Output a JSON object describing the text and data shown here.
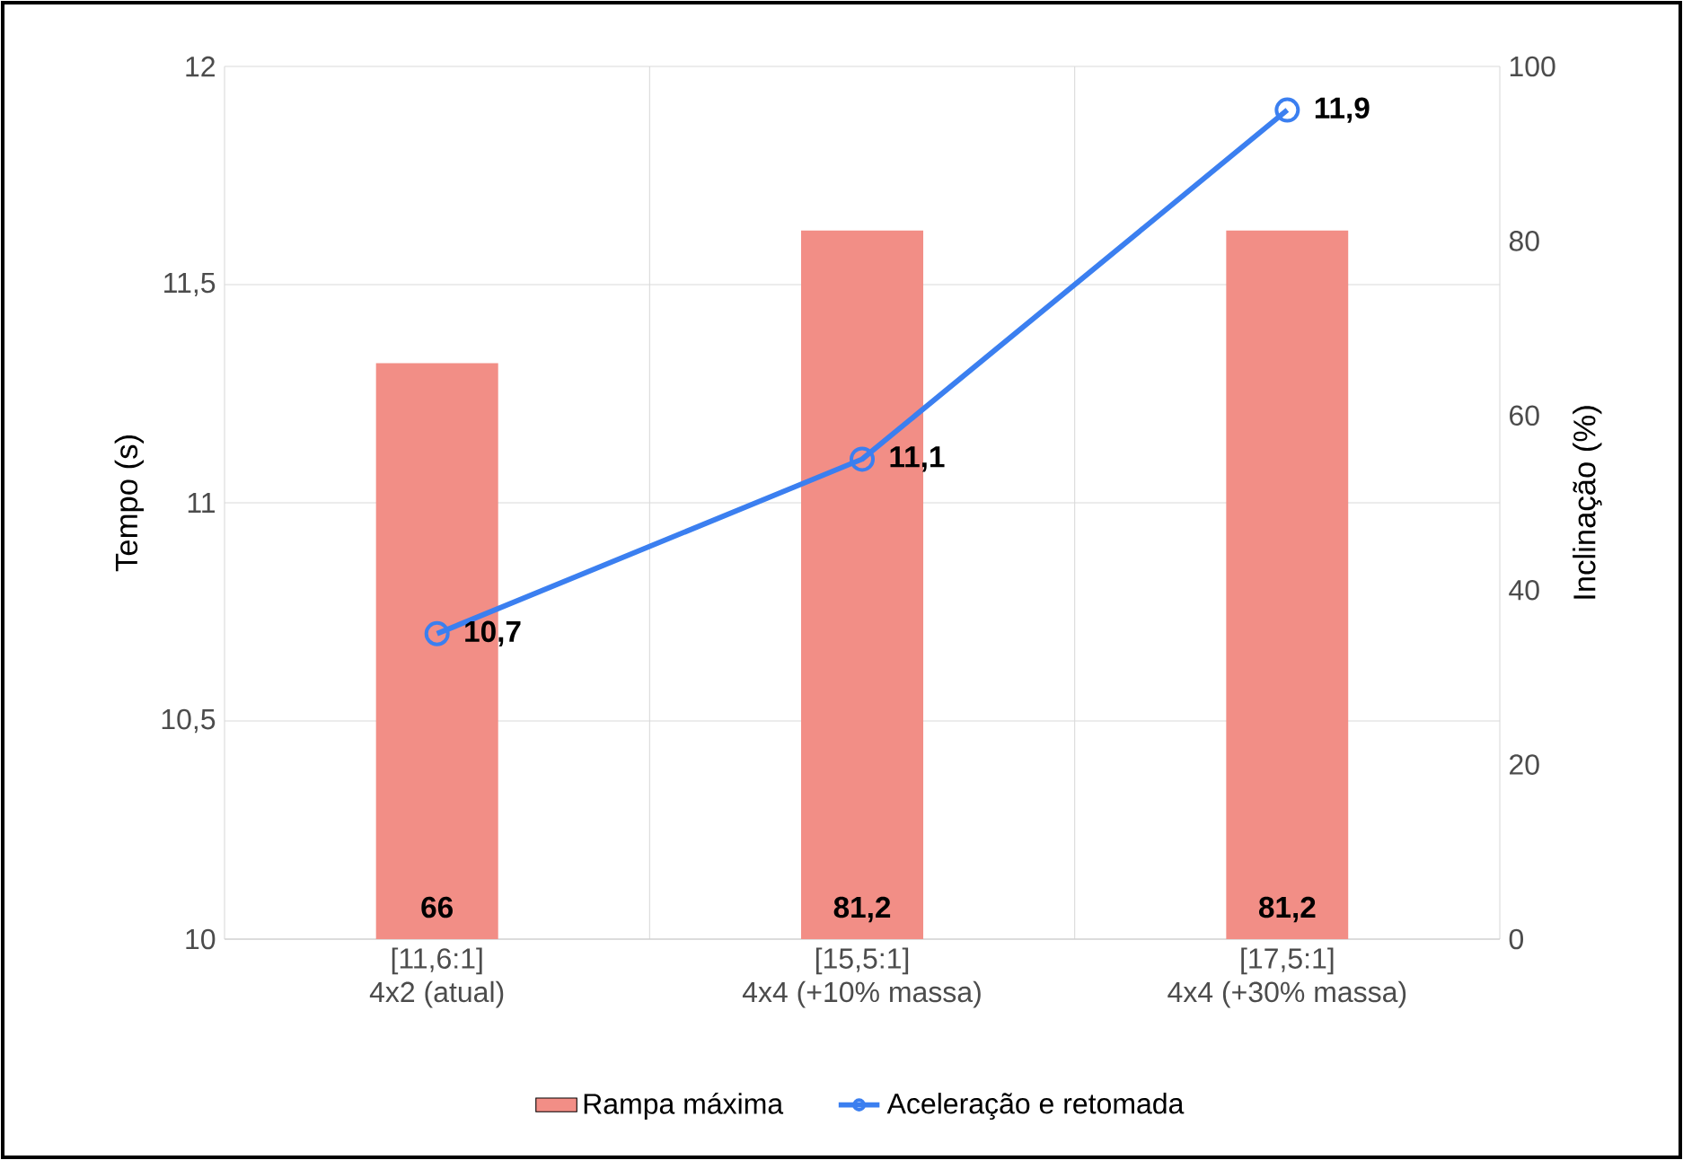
{
  "chart_data": {
    "type": "bar",
    "categories": [
      "[11,6:1]\n4x2 (atual)",
      "[15,5:1]\n4x4 (+10% massa)",
      "[17,5:1]\n4x4 (+30% massa)"
    ],
    "ylabel": "Tempo (s)",
    "y2label": "Inclinação (%)",
    "ylim": [
      10,
      12
    ],
    "yticks": [
      {
        "value": 10,
        "label": "10"
      },
      {
        "value": 10.5,
        "label": "10,5"
      },
      {
        "value": 11,
        "label": "11"
      },
      {
        "value": 11.5,
        "label": "11,5"
      },
      {
        "value": 12,
        "label": "12"
      }
    ],
    "y2lim": [
      0,
      100
    ],
    "y2ticks": [
      0,
      20,
      40,
      60,
      80,
      100
    ],
    "grid": true,
    "legend": "bottom",
    "series": [
      {
        "name": "Rampa máxima",
        "axis": "y2",
        "color": "#f28e86",
        "values": [
          66,
          81.2,
          81.2
        ],
        "value_labels": [
          "66",
          "81,2",
          "81,2"
        ]
      },
      {
        "name": "Aceleração e retomada",
        "type": "line",
        "axis": "y",
        "color": "#3b7ff0",
        "marker": "circle",
        "values": [
          10.7,
          11.1,
          11.9
        ],
        "value_labels": [
          "10,7",
          "11,1",
          "11,9"
        ]
      }
    ]
  }
}
